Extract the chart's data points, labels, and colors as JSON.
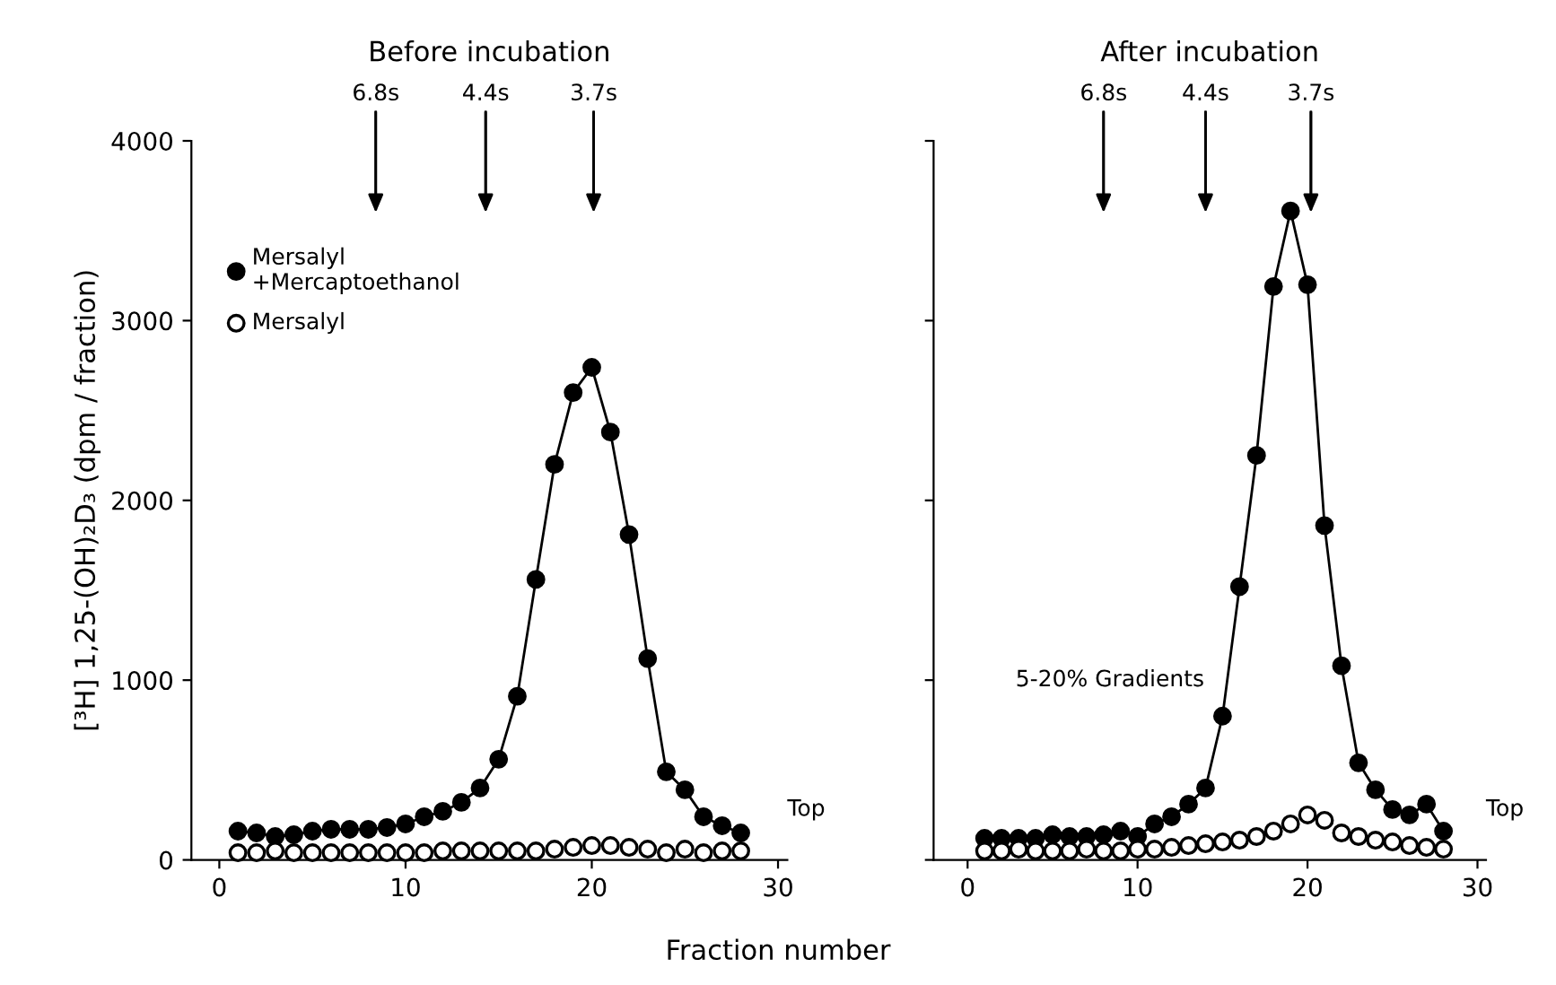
{
  "chart_data": [
    {
      "type": "line",
      "title": "Before incubation",
      "xlabel": "Fraction number",
      "ylabel": "[³H] 1,25-(OH)₂D₃ (dpm / fraction)",
      "x": [
        1,
        2,
        3,
        4,
        5,
        6,
        7,
        8,
        9,
        10,
        11,
        12,
        13,
        14,
        15,
        16,
        17,
        18,
        19,
        20,
        21,
        22,
        23,
        24,
        25,
        26,
        27,
        28
      ],
      "series": [
        {
          "name": "Mersalyl\n+Mercaptoethanol",
          "color": "#000000",
          "marker": "circle",
          "line_style": "solid",
          "values": [
            160,
            150,
            130,
            140,
            160,
            170,
            170,
            170,
            180,
            200,
            240,
            270,
            320,
            400,
            560,
            910,
            1560,
            2200,
            2600,
            2740,
            2380,
            1810,
            1120,
            490,
            390,
            240,
            190,
            150
          ]
        },
        {
          "name": "Mersalyl",
          "type": "scatter",
          "color": "#000000",
          "marker": "circle",
          "values": [
            40,
            40,
            50,
            40,
            40,
            40,
            40,
            40,
            40,
            40,
            40,
            50,
            50,
            50,
            50,
            50,
            50,
            60,
            70,
            80,
            80,
            70,
            60,
            40,
            60,
            40,
            50,
            50
          ]
        }
      ],
      "xlim": [
        -1.5,
        30.5
      ],
      "ylim": [
        0,
        4000
      ],
      "xticks": [
        0,
        10,
        20,
        30
      ],
      "yticks": [
        0,
        1000,
        2000,
        3000,
        4000
      ],
      "grid": false,
      "legend": "top left",
      "ref_lines": [
        {
          "axis": "x",
          "value": 8.4,
          "label": "6.8s"
        },
        {
          "axis": "x",
          "value": 14.3,
          "label": "4.4s"
        },
        {
          "axis": "x",
          "value": 20.1,
          "label": "3.7s"
        }
      ],
      "annotations": [
        "Top"
      ]
    },
    {
      "type": "line",
      "title": "After incubation",
      "x": [
        1,
        2,
        3,
        4,
        5,
        6,
        7,
        8,
        9,
        10,
        11,
        12,
        13,
        14,
        15,
        16,
        17,
        18,
        19,
        20,
        21,
        22,
        23,
        24,
        25,
        26,
        27,
        28
      ],
      "series": [
        {
          "color": "#000000",
          "marker": "circle",
          "line_style": "solid",
          "values": [
            120,
            120,
            120,
            120,
            140,
            130,
            130,
            140,
            160,
            130,
            200,
            240,
            310,
            400,
            800,
            1520,
            2250,
            3190,
            3610,
            3200,
            1860,
            1080,
            540,
            390,
            280,
            250,
            310,
            160
          ]
        },
        {
          "type": "scatter",
          "color": "#000000",
          "marker": "circle",
          "values": [
            50,
            50,
            60,
            50,
            50,
            50,
            60,
            50,
            50,
            60,
            60,
            70,
            80,
            90,
            100,
            110,
            130,
            160,
            200,
            250,
            220,
            150,
            130,
            110,
            100,
            80,
            70,
            60
          ]
        }
      ],
      "xlim": [
        -2,
        30.5
      ],
      "ylim": [
        0,
        4000
      ],
      "xticks": [
        0,
        10,
        20,
        30
      ],
      "yticks": [
        0,
        1000,
        2000,
        3000,
        4000
      ],
      "tick_labels": "x",
      "grid": false,
      "legend": false,
      "ref_lines": [
        {
          "axis": "x",
          "value": 8.0,
          "label": "6.8s"
        },
        {
          "axis": "x",
          "value": 14.0,
          "label": "4.4s"
        },
        {
          "axis": "x",
          "value": 20.2,
          "label": "3.7s"
        }
      ],
      "annotations": [
        "Top",
        "5-20% Gradients"
      ]
    }
  ]
}
